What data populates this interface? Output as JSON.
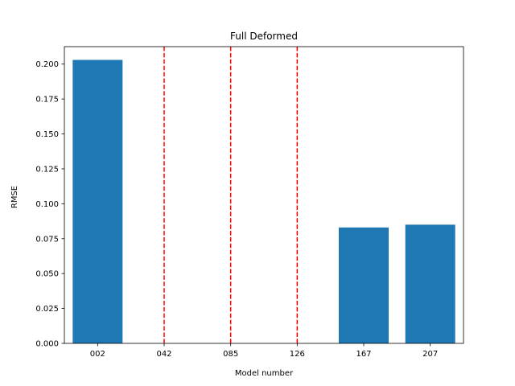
{
  "chart_data": {
    "type": "bar",
    "title": "Full Deformed",
    "xlabel": "Model number",
    "ylabel": "RMSE",
    "categories": [
      "002",
      "042",
      "085",
      "126",
      "167",
      "207"
    ],
    "values": [
      0.203,
      null,
      null,
      null,
      0.083,
      0.085
    ],
    "marker_lines": [
      "042",
      "085",
      "126"
    ],
    "ylim": [
      0,
      0.2125
    ],
    "yticks": [
      0.0,
      0.025,
      0.05,
      0.075,
      0.1,
      0.125,
      0.15,
      0.175,
      0.2
    ],
    "ytick_labels": [
      "0.000",
      "0.025",
      "0.050",
      "0.075",
      "0.100",
      "0.125",
      "0.150",
      "0.175",
      "0.200"
    ],
    "grid": false,
    "legend": "none",
    "colors": {
      "bar": "#1f77b4",
      "marker_line": "#ff0000",
      "axis": "#000000"
    }
  }
}
